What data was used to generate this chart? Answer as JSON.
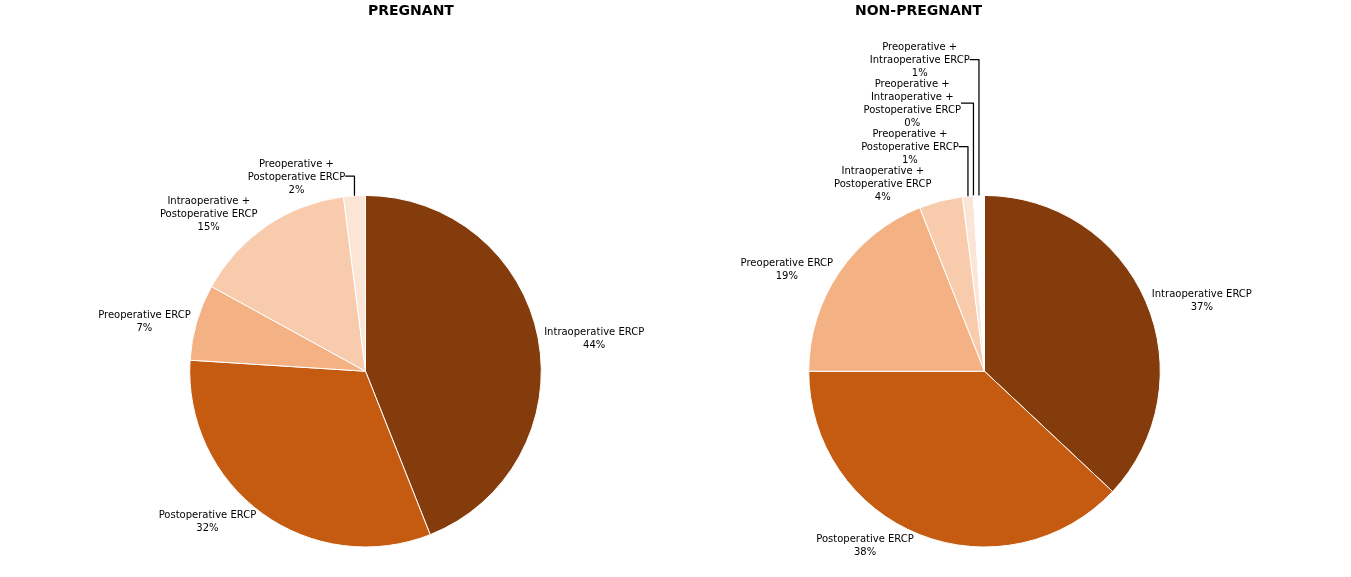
{
  "chart_data": [
    {
      "type": "pie",
      "title": "PREGNANT",
      "categories": [
        "Intraoperative ERCP",
        "Postoperative ERCP",
        "Preoperative ERCP",
        "Intraoperative + Postoperative ERCP",
        "Preoperative + Postoperative ERCP"
      ],
      "values": [
        44,
        32,
        7,
        15,
        2
      ],
      "value_labels": [
        "44%",
        "32%",
        "7%",
        "15%",
        "2%"
      ],
      "colors": [
        "#843c0c",
        "#c55a11",
        "#f4b183",
        "#f8cbad",
        "#fbe5d6"
      ],
      "legend": false
    },
    {
      "type": "pie",
      "title": "NON-PREGNANT",
      "categories": [
        "Intraoperative ERCP",
        "Postoperative ERCP",
        "Preoperative ERCP",
        "Intraoperative + Postoperative ERCP",
        "Preoperative + Postoperative ERCP",
        "Preoperative + Intraoperative + Postoperative ERCP",
        "Preoperative + Intraoperative ERCP"
      ],
      "values": [
        37,
        38,
        19,
        4,
        1,
        0,
        1
      ],
      "value_labels": [
        "37%",
        "38%",
        "19%",
        "4%",
        "1%",
        "0%",
        "1%"
      ],
      "colors": [
        "#843c0c",
        "#c55a11",
        "#f4b183",
        "#f8cbad",
        "#fbe5d6",
        "#fdf2ea",
        "#ffffff"
      ],
      "legend": false
    }
  ]
}
